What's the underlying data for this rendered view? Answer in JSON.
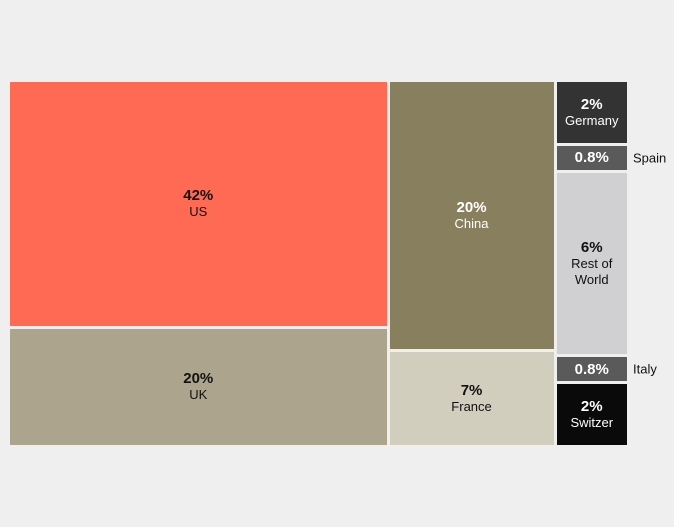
{
  "chart_data": {
    "type": "treemap",
    "categories": [
      "US",
      "UK",
      "China",
      "France",
      "Germany",
      "Spain",
      "Rest of World",
      "Italy",
      "Switzer"
    ],
    "values": [
      42,
      20,
      20,
      7,
      2,
      0.8,
      6,
      0.8,
      2
    ],
    "value_labels": [
      "42%",
      "20%",
      "20%",
      "7%",
      "2%",
      "0.8%",
      "6%",
      "0.8%",
      "2%"
    ],
    "colors": [
      "#ff6a55",
      "#aca48d",
      "#877f5e",
      "#d1cebe",
      "#333333",
      "#5a5a5a",
      "#d0cfd1",
      "#5a5a5a",
      "#0a0a0a"
    ]
  }
}
